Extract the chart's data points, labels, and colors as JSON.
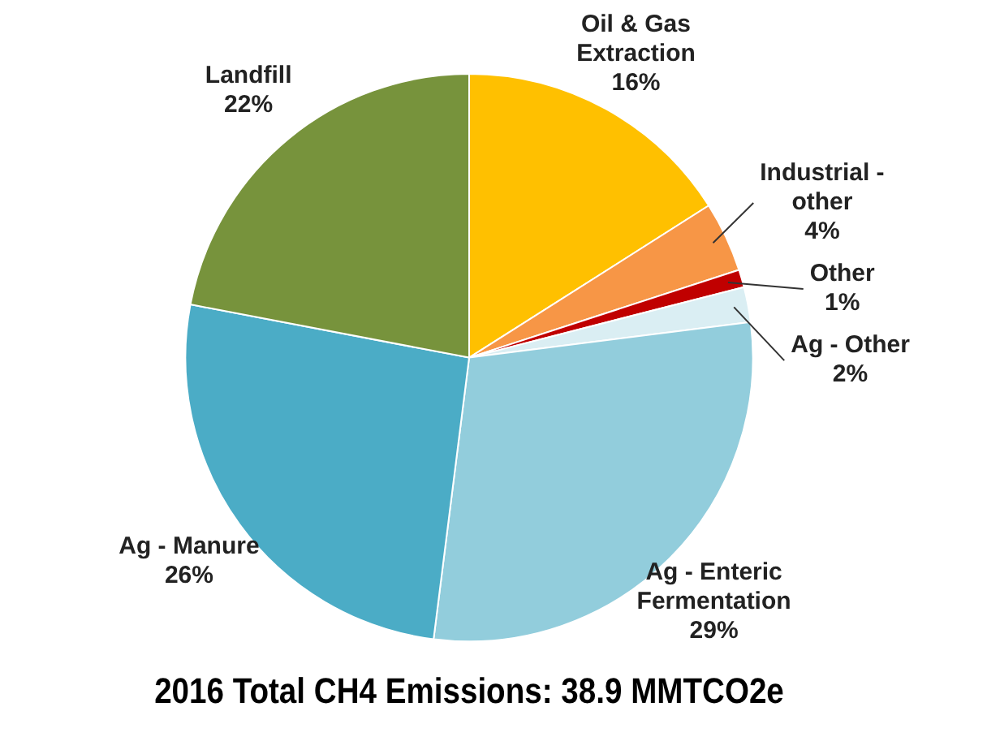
{
  "chart_data": {
    "type": "pie",
    "title": "2016 Total CH4 Emissions: 38.9 MMTCO2e",
    "categories": [
      "Oil & Gas Extraction",
      "Industrial - other",
      "Other",
      "Ag - Other",
      "Ag - Enteric Fermentation",
      "Ag - Manure",
      "Landfill"
    ],
    "values": [
      16,
      4,
      1,
      2,
      29,
      26,
      22
    ],
    "value_labels": [
      "16%",
      "4%",
      "1%",
      "2%",
      "29%",
      "26%",
      "22%"
    ],
    "colors": [
      "#ffc000",
      "#f79646",
      "#c00000",
      "#daeef3",
      "#92cddc",
      "#4bacc6",
      "#77933c"
    ],
    "legend": false
  }
}
